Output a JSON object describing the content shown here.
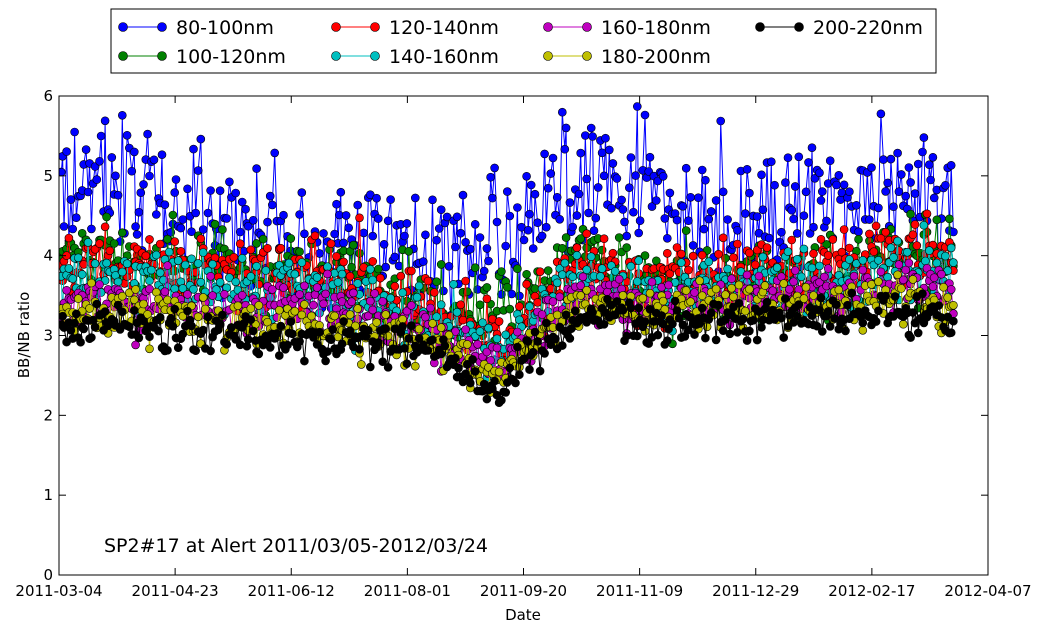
{
  "chart_data": {
    "type": "line",
    "title": "",
    "xlabel": "Date",
    "ylabel": "BB/NB ratio",
    "ylim": [
      0,
      6
    ],
    "yticks": [
      0,
      1,
      2,
      3,
      4,
      5,
      6
    ],
    "xlim": [
      "2011-03-04",
      "2012-04-07"
    ],
    "xticks": [
      "2011-03-04",
      "2011-04-23",
      "2011-06-12",
      "2011-08-01",
      "2011-09-20",
      "2011-11-09",
      "2011-12-29",
      "2012-02-17",
      "2012-04-07"
    ],
    "annotation": "SP2#17 at Alert 2011/03/05-2012/03/24",
    "legend_position": "top-outside",
    "legend_columns": 4,
    "date_range": [
      "2011-03-05",
      "2012-03-24"
    ],
    "series": [
      {
        "name": "80-100nm",
        "color": "#0000ff",
        "anchors": [
          [
            "2011-03-05",
            5.1
          ],
          [
            "2011-03-20",
            5.0
          ],
          [
            "2011-04-05",
            4.8
          ],
          [
            "2011-04-25",
            4.55
          ],
          [
            "2011-05-20",
            4.6
          ],
          [
            "2011-06-10",
            4.3
          ],
          [
            "2011-07-01",
            4.1
          ],
          [
            "2011-07-20",
            4.0
          ],
          [
            "2011-08-15",
            4.0
          ],
          [
            "2011-09-05",
            4.1
          ],
          [
            "2011-09-20",
            4.3
          ],
          [
            "2011-10-10",
            4.9
          ],
          [
            "2011-10-25",
            5.2
          ],
          [
            "2011-11-10",
            4.9
          ],
          [
            "2011-11-25",
            4.4
          ],
          [
            "2011-12-15",
            4.4
          ],
          [
            "2012-01-05",
            4.6
          ],
          [
            "2012-01-25",
            4.6
          ],
          [
            "2012-02-10",
            4.5
          ],
          [
            "2012-02-25",
            4.8
          ],
          [
            "2012-03-24",
            4.5
          ]
        ],
        "noise": 0.45
      },
      {
        "name": "100-120nm",
        "color": "#008000",
        "anchors": [
          [
            "2011-03-05",
            4.0
          ],
          [
            "2011-04-05",
            3.9
          ],
          [
            "2011-05-15",
            3.8
          ],
          [
            "2011-06-10",
            3.8
          ],
          [
            "2011-07-10",
            3.7
          ],
          [
            "2011-08-15",
            3.4
          ],
          [
            "2011-09-10",
            3.1
          ],
          [
            "2011-09-25",
            3.4
          ],
          [
            "2011-10-15",
            4.0
          ],
          [
            "2011-11-10",
            3.6
          ],
          [
            "2011-12-10",
            3.6
          ],
          [
            "2012-01-10",
            3.8
          ],
          [
            "2012-02-05",
            3.7
          ],
          [
            "2012-02-25",
            4.0
          ],
          [
            "2012-03-24",
            4.0
          ]
        ],
        "noise": 0.25
      },
      {
        "name": "120-140nm",
        "color": "#ff0000",
        "anchors": [
          [
            "2011-03-05",
            3.95
          ],
          [
            "2011-04-05",
            3.85
          ],
          [
            "2011-05-15",
            3.7
          ],
          [
            "2011-06-10",
            3.75
          ],
          [
            "2011-07-10",
            3.65
          ],
          [
            "2011-08-15",
            3.3
          ],
          [
            "2011-09-10",
            2.9
          ],
          [
            "2011-09-25",
            3.3
          ],
          [
            "2011-10-15",
            3.95
          ],
          [
            "2011-11-10",
            3.6
          ],
          [
            "2011-12-10",
            3.8
          ],
          [
            "2012-01-10",
            3.85
          ],
          [
            "2012-02-05",
            3.9
          ],
          [
            "2012-02-25",
            4.15
          ],
          [
            "2012-03-24",
            4.0
          ]
        ],
        "noise": 0.22
      },
      {
        "name": "140-160nm",
        "color": "#00bfbf",
        "anchors": [
          [
            "2011-03-05",
            3.75
          ],
          [
            "2011-04-05",
            3.7
          ],
          [
            "2011-05-15",
            3.6
          ],
          [
            "2011-06-10",
            3.6
          ],
          [
            "2011-07-10",
            3.5
          ],
          [
            "2011-08-15",
            3.2
          ],
          [
            "2011-09-10",
            2.8
          ],
          [
            "2011-09-25",
            3.2
          ],
          [
            "2011-10-15",
            3.8
          ],
          [
            "2011-11-10",
            3.45
          ],
          [
            "2011-12-10",
            3.6
          ],
          [
            "2012-01-10",
            3.7
          ],
          [
            "2012-02-05",
            3.65
          ],
          [
            "2012-02-25",
            3.85
          ],
          [
            "2012-03-24",
            3.8
          ]
        ],
        "noise": 0.2
      },
      {
        "name": "160-180nm",
        "color": "#bf00bf",
        "anchors": [
          [
            "2011-03-05",
            3.45
          ],
          [
            "2011-04-05",
            3.45
          ],
          [
            "2011-05-15",
            3.35
          ],
          [
            "2011-06-10",
            3.35
          ],
          [
            "2011-07-10",
            3.25
          ],
          [
            "2011-08-15",
            3.0
          ],
          [
            "2011-09-10",
            2.6
          ],
          [
            "2011-09-25",
            3.0
          ],
          [
            "2011-10-15",
            3.5
          ],
          [
            "2011-11-10",
            3.35
          ],
          [
            "2011-12-10",
            3.45
          ],
          [
            "2012-01-10",
            3.55
          ],
          [
            "2012-02-05",
            3.5
          ],
          [
            "2012-02-25",
            3.65
          ],
          [
            "2012-03-24",
            3.6
          ]
        ],
        "noise": 0.15
      },
      {
        "name": "180-200nm",
        "color": "#bfbf00",
        "anchors": [
          [
            "2011-03-05",
            3.3
          ],
          [
            "2011-04-05",
            3.3
          ],
          [
            "2011-05-15",
            3.2
          ],
          [
            "2011-06-10",
            3.15
          ],
          [
            "2011-07-10",
            3.1
          ],
          [
            "2011-08-15",
            2.9
          ],
          [
            "2011-09-10",
            2.45
          ],
          [
            "2011-09-25",
            2.9
          ],
          [
            "2011-10-15",
            3.35
          ],
          [
            "2011-11-10",
            3.3
          ],
          [
            "2011-12-10",
            3.35
          ],
          [
            "2012-01-10",
            3.4
          ],
          [
            "2012-02-05",
            3.35
          ],
          [
            "2012-02-25",
            3.45
          ],
          [
            "2012-03-24",
            3.4
          ]
        ],
        "noise": 0.14
      },
      {
        "name": "200-220nm",
        "color": "#000000",
        "anchors": [
          [
            "2011-03-05",
            3.15
          ],
          [
            "2011-04-05",
            3.1
          ],
          [
            "2011-05-15",
            3.0
          ],
          [
            "2011-06-10",
            2.95
          ],
          [
            "2011-07-10",
            2.95
          ],
          [
            "2011-08-15",
            2.8
          ],
          [
            "2011-09-10",
            2.3
          ],
          [
            "2011-09-25",
            2.75
          ],
          [
            "2011-10-15",
            3.25
          ],
          [
            "2011-11-10",
            3.2
          ],
          [
            "2011-12-10",
            3.2
          ],
          [
            "2012-01-10",
            3.25
          ],
          [
            "2012-02-05",
            3.25
          ],
          [
            "2012-02-25",
            3.35
          ],
          [
            "2012-03-24",
            3.2
          ]
        ],
        "noise": 0.13
      }
    ]
  }
}
